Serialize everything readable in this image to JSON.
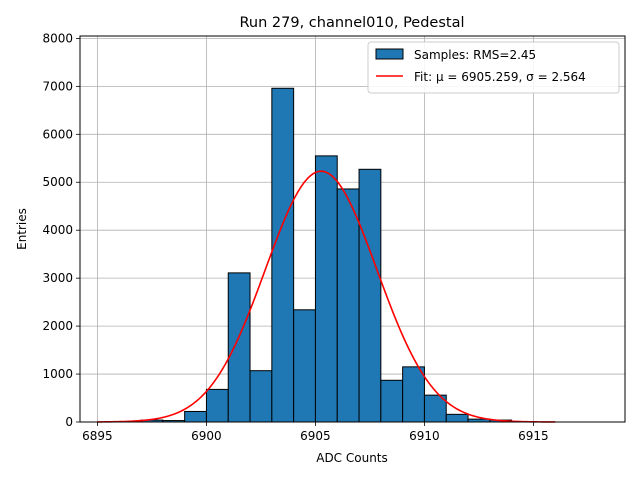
{
  "chart_data": {
    "type": "bar",
    "title": "Run 279, channel010, Pedestal",
    "xlabel": "ADC Counts",
    "ylabel": "Entries",
    "xlim": [
      6894.2,
      6919.2
    ],
    "ylim": [
      0,
      8050
    ],
    "x_ticks": [
      6895,
      6900,
      6905,
      6910,
      6915
    ],
    "y_ticks": [
      0,
      1000,
      2000,
      3000,
      4000,
      5000,
      6000,
      7000,
      8000
    ],
    "grid": true,
    "legend_position": "top-right",
    "bin_width": 1,
    "series": [
      {
        "name": "Samples: RMS=2.45",
        "kind": "histogram",
        "color": "#1f77b4",
        "edge_color": "#000000",
        "bin_left_edges": [
          6897,
          6898,
          6899,
          6900,
          6901,
          6902,
          6903,
          6904,
          6905,
          6906,
          6907,
          6908,
          6909,
          6910,
          6911,
          6912,
          6913
        ],
        "values": [
          40,
          30,
          220,
          680,
          3110,
          1070,
          6960,
          2340,
          5550,
          4860,
          5270,
          870,
          1150,
          560,
          160,
          60,
          40
        ]
      },
      {
        "name_prefix": "Fit: ",
        "mu_label": "μ = 6905.259",
        "sigma_label": "σ = 2.564",
        "kind": "gaussian",
        "color": "#ff0000",
        "mu": 6905.259,
        "sigma": 2.564,
        "amplitude": 5230,
        "x_range": [
          6895,
          6916
        ]
      }
    ]
  }
}
